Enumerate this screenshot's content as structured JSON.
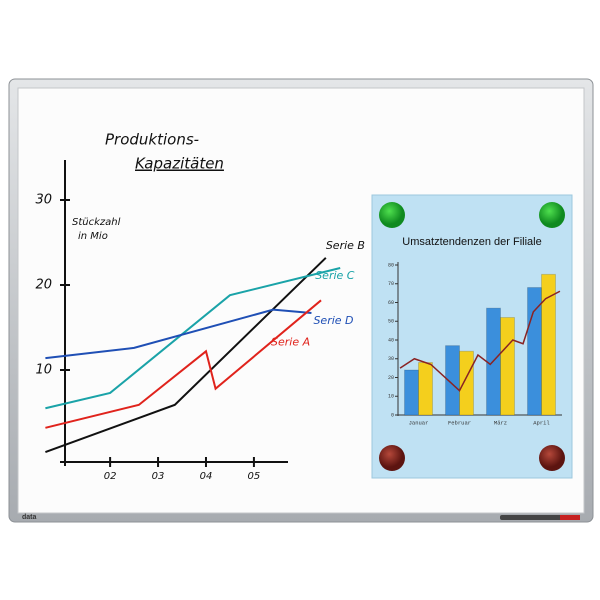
{
  "brand": "data",
  "chart_data": [
    {
      "type": "line",
      "title_lines": [
        "Produktions-",
        "Kapazitäten"
      ],
      "y_label_lines": [
        "Stückzahl",
        "in Mio"
      ],
      "xlim": [
        0.6,
        6.9
      ],
      "xticks": [
        {
          "value": 2,
          "label": "02"
        },
        {
          "value": 3,
          "label": "03"
        },
        {
          "value": 4,
          "label": "04"
        },
        {
          "value": 5,
          "label": "05"
        }
      ],
      "ylim": [
        -0.8,
        35
      ],
      "yticks": [
        10,
        20,
        30
      ],
      "series": [
        {
          "name": "Serie B",
          "color": "#111111",
          "x": [
            0.65,
            3.35,
            6.5
          ],
          "values": [
            0.35,
            5.9,
            23.2
          ]
        },
        {
          "name": "Serie C",
          "color": "#1aa3a8",
          "x": [
            0.65,
            2,
            4.5,
            6.8
          ],
          "values": [
            5.5,
            7.3,
            18.8,
            22
          ]
        },
        {
          "name": "Serie D",
          "color": "#1f4fb5",
          "x": [
            0.65,
            2.5,
            5.4,
            6.2
          ],
          "values": [
            11.4,
            12.6,
            17.1,
            16.7
          ]
        },
        {
          "name": "Serie A",
          "color": "#e0231c",
          "x": [
            0.65,
            2.6,
            4.0,
            4.2,
            6.4
          ],
          "values": [
            3.2,
            5.9,
            12.2,
            7.8,
            18.2
          ]
        }
      ]
    },
    {
      "type": "bar",
      "title": "Umsatztendenzen der Filiale",
      "categories": [
        "Januar",
        "Februar",
        "März",
        "April"
      ],
      "ylim": [
        0,
        80
      ],
      "yticks": [
        0,
        10,
        20,
        30,
        40,
        50,
        60,
        70,
        80
      ],
      "series": [
        {
          "color": "#3b8fdc",
          "values": [
            24,
            37,
            57,
            68
          ]
        },
        {
          "color": "#f4cf1d",
          "values": [
            28,
            34,
            52,
            75
          ]
        }
      ],
      "line": {
        "color": "#8a2323",
        "x": [
          -0.45,
          -0.1,
          0.3,
          1.0,
          1.45,
          1.75,
          2.3,
          2.55,
          2.8,
          3.1,
          3.45
        ],
        "values": [
          25,
          30,
          27,
          13,
          32,
          27,
          40,
          38,
          55,
          62,
          66
        ]
      }
    }
  ]
}
